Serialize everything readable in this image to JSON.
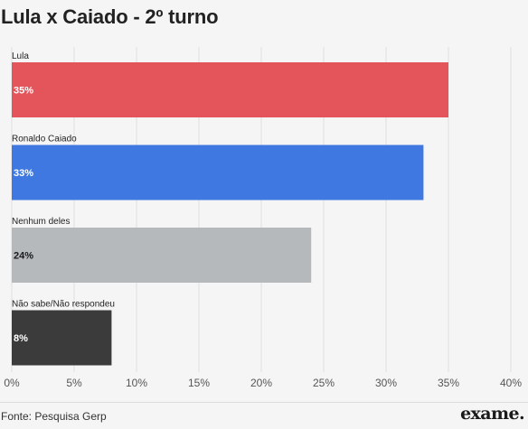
{
  "chart_data": {
    "type": "bar",
    "orientation": "horizontal",
    "title": "Lula x Caiado - 2º turno",
    "categories": [
      "Lula",
      "Ronaldo Caiado",
      "Nenhum deles",
      "Não sabe/Não respondeu"
    ],
    "values": [
      35,
      33,
      24,
      8
    ],
    "data_labels": [
      "35%",
      "33%",
      "24%",
      "8%"
    ],
    "colors": [
      "#e3545b",
      "#3e78e0",
      "#b6b9bc",
      "#3b3b3b"
    ],
    "label_colors": [
      "#ffffff",
      "#ffffff",
      "#1a1a1a",
      "#ffffff"
    ],
    "xlim": [
      0,
      40
    ],
    "ticks": [
      0,
      5,
      10,
      15,
      20,
      25,
      30,
      35,
      40
    ],
    "tick_labels": [
      "0%",
      "5%",
      "10%",
      "15%",
      "20%",
      "25%",
      "30%",
      "35%",
      "40%"
    ],
    "grid": true
  },
  "footer": {
    "source": "Fonte: Pesquisa Gerp",
    "brand": "exame."
  }
}
